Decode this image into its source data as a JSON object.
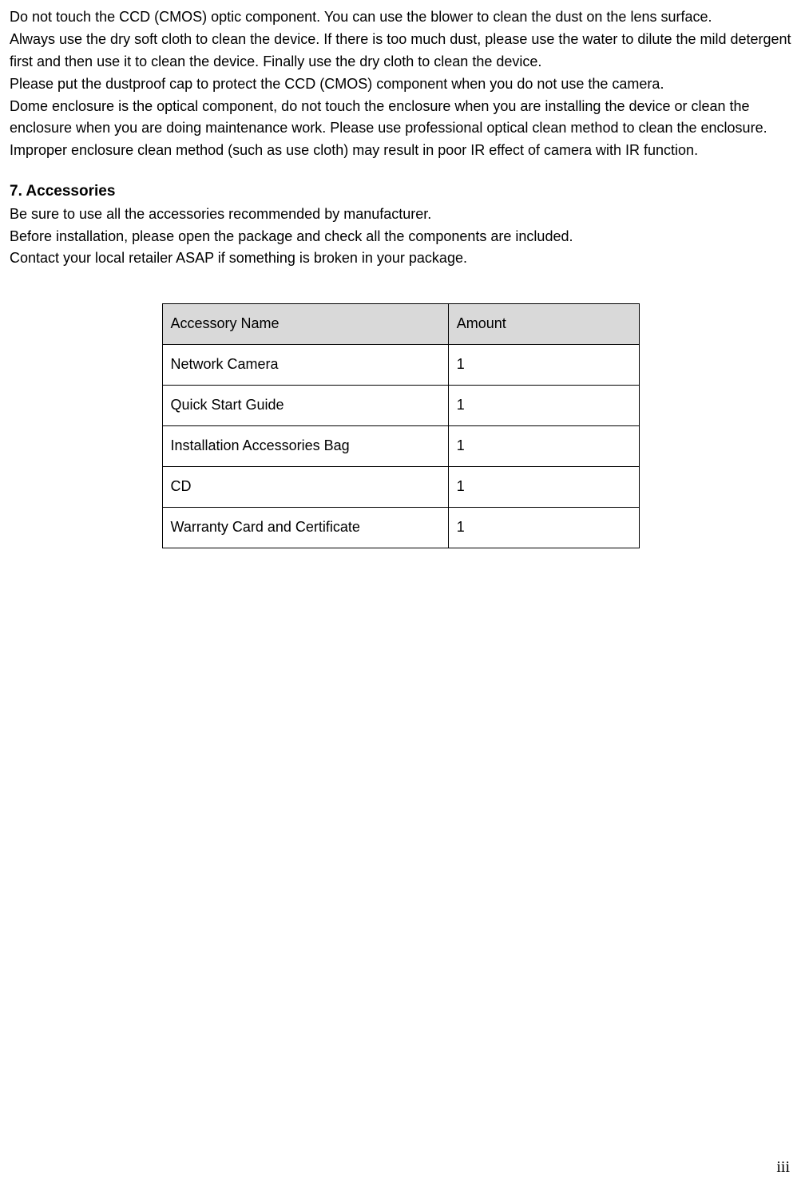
{
  "body": {
    "para1": "Do not touch the CCD (CMOS) optic component. You can use the blower to clean the dust on the lens surface.",
    "para2": "Always use the dry soft cloth to clean the device.  If there is too much dust, please use the water to dilute the mild detergent first and then use it to clean the device. Finally use the dry cloth to clean the device.",
    "para3": "Please put the dustproof cap to protect the CCD (CMOS) component when you do not use the camera.",
    "para4": "Dome enclosure is the optical component, do not touch the enclosure when you are installing the device or clean the enclosure when you are doing maintenance work. Please use professional optical clean method to clean the enclosure. Improper enclosure clean method (such as use cloth) may result in poor IR effect of camera with IR function."
  },
  "section": {
    "heading": "7. Accessories",
    "para1": "Be sure to use all the accessories recommended by manufacturer.",
    "para2": "Before installation, please open the package and check all the components are included.",
    "para3": "Contact your local retailer ASAP if something is broken in your package."
  },
  "table": {
    "headers": {
      "name": "Accessory Name",
      "amount": "Amount"
    },
    "rows": [
      {
        "name": "Network Camera",
        "amount": "1"
      },
      {
        "name": "Quick Start Guide",
        "amount": "1"
      },
      {
        "name": "Installation Accessories Bag",
        "amount": "1"
      },
      {
        "name": "CD",
        "amount": "1"
      },
      {
        "name": "Warranty Card and Certificate",
        "amount": "1"
      }
    ],
    "style": {
      "header_bg": "#d9d9d9",
      "border_color": "#000000",
      "col_widths_pct": [
        60,
        40
      ]
    }
  },
  "page_number": "iii"
}
